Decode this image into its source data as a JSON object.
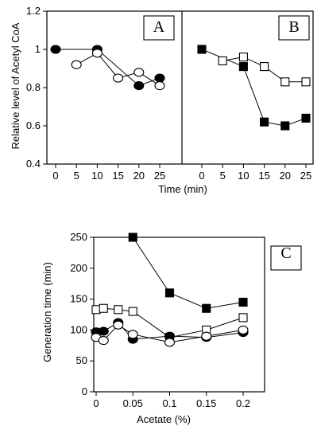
{
  "chart_data": [
    {
      "panel": "A",
      "type": "line",
      "ylabel": "Relative level of Acetyl CoA",
      "ylim": [
        0.4,
        1.2
      ],
      "yticks": [
        "0.4",
        "0.6",
        "0.8",
        "1",
        "1.2"
      ],
      "xlim": [
        0,
        25
      ],
      "xticks": [
        "0",
        "5",
        "10",
        "15",
        "20",
        "25"
      ],
      "series": [
        {
          "marker": "filled-circle",
          "x": [
            0,
            10,
            20,
            25
          ],
          "values": [
            1.0,
            1.0,
            0.81,
            0.85
          ]
        },
        {
          "marker": "open-circle",
          "x": [
            5,
            10,
            15,
            20,
            25
          ],
          "values": [
            0.92,
            0.98,
            0.85,
            0.88,
            0.81
          ]
        }
      ]
    },
    {
      "panel": "B",
      "type": "line",
      "xlabel": "Time (min)",
      "ylim": [
        0.4,
        1.2
      ],
      "xlim": [
        0,
        25
      ],
      "xticks": [
        "0",
        "5",
        "10",
        "15",
        "20",
        "25"
      ],
      "series": [
        {
          "marker": "filled-square",
          "x": [
            0,
            10,
            15,
            20,
            25
          ],
          "values": [
            1.0,
            0.91,
            0.62,
            0.6,
            0.64
          ]
        },
        {
          "marker": "open-square",
          "x": [
            5,
            10,
            15,
            20,
            25
          ],
          "values": [
            0.94,
            0.96,
            0.91,
            0.83,
            0.83
          ]
        }
      ]
    },
    {
      "panel": "C",
      "type": "line",
      "xlabel": "Acetate (%)",
      "ylabel": "Generation time (min)",
      "xlim": [
        0,
        0.2
      ],
      "ylim": [
        0,
        250
      ],
      "xticks": [
        "0",
        "0.05",
        "0.1",
        "0.15",
        "0.2"
      ],
      "yticks": [
        "0",
        "50",
        "100",
        "150",
        "200",
        "250"
      ],
      "series": [
        {
          "marker": "filled-square",
          "x": [
            0.05,
            0.1,
            0.15,
            0.2
          ],
          "values": [
            250,
            160,
            135,
            145
          ]
        },
        {
          "marker": "open-square",
          "x": [
            0,
            0.01,
            0.03,
            0.05,
            0.1,
            0.15,
            0.2
          ],
          "values": [
            133,
            135,
            133,
            130,
            88,
            100,
            120
          ]
        },
        {
          "marker": "filled-circle",
          "x": [
            0,
            0.01,
            0.03,
            0.05,
            0.1,
            0.15,
            0.2
          ],
          "values": [
            97,
            98,
            112,
            85,
            90,
            88,
            96
          ]
        },
        {
          "marker": "open-circle",
          "x": [
            0,
            0.01,
            0.03,
            0.05,
            0.1,
            0.15,
            0.2
          ],
          "values": [
            88,
            83,
            108,
            93,
            80,
            90,
            100
          ]
        }
      ]
    }
  ]
}
